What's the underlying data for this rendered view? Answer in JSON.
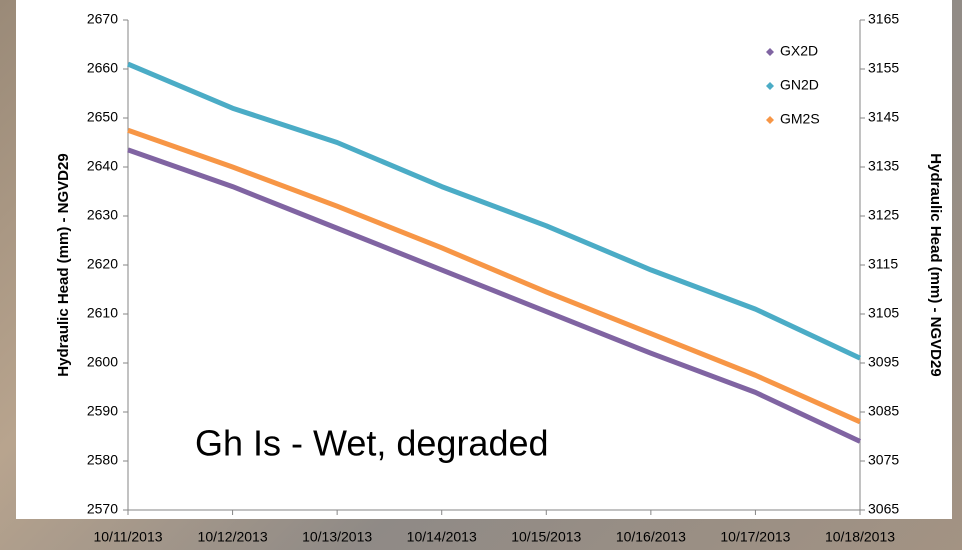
{
  "chart_data": {
    "type": "line",
    "y_label": "Hydraulic Head (mm) - NGVD29",
    "y2_label": "Hydraulic Head (mm) - NGVD29",
    "annotation": "Gh Is - Wet, degraded",
    "x": [
      "10/11/2013",
      "10/12/2013",
      "10/13/2013",
      "10/14/2013",
      "10/15/2013",
      "10/16/2013",
      "10/17/2013",
      "10/18/2013"
    ],
    "ylim": [
      2570,
      2670
    ],
    "yticks": [
      2570,
      2580,
      2590,
      2600,
      2610,
      2620,
      2630,
      2640,
      2650,
      2660,
      2670
    ],
    "y2lim": [
      3065,
      3165
    ],
    "y2ticks": [
      3065,
      3075,
      3085,
      3095,
      3105,
      3115,
      3125,
      3135,
      3145,
      3155,
      3165
    ],
    "legend": "top-right",
    "series": [
      {
        "name": "GX2D",
        "color": "#8064a2",
        "values": [
          2643.5,
          2636,
          2627.5,
          2619,
          2610.5,
          2602,
          2594,
          2584
        ]
      },
      {
        "name": "GN2D",
        "color": "#4bacc6",
        "axis": "y2",
        "values": [
          3156,
          3147,
          3140,
          3131,
          3123,
          3114,
          3106,
          3096
        ]
      },
      {
        "name": "GM2S",
        "color": "#f79646",
        "values": [
          2647.5,
          2640,
          2632,
          2623.5,
          2614.5,
          2606,
          2597.5,
          2588
        ]
      }
    ]
  }
}
